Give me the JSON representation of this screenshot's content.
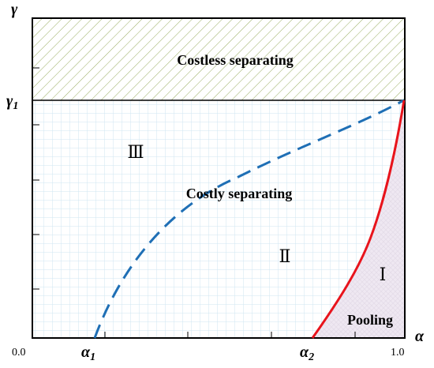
{
  "axes": {
    "y_axis_label": "γ",
    "x_axis_label": "α",
    "y_tick_label": "γ",
    "y_tick_subscript": "1",
    "x_origin_label": "0.0",
    "x_end_label": "1.0",
    "alpha1_label": "α",
    "alpha1_subscript": "1",
    "alpha2_label": "α",
    "alpha2_subscript": "2"
  },
  "regions": {
    "costless": "Costless separating",
    "costly": "Costly separating",
    "pooling": "Pooling",
    "region_III": "Ⅲ",
    "region_II": "Ⅱ",
    "region_I": "Ⅰ"
  },
  "colors": {
    "dashed_curve": "#1f6fb5",
    "solid_curve": "#e8141c",
    "costless_hatch": "#9aae62",
    "grid": "#cfe6f2",
    "pooling_fill": "#d8cfe0"
  }
}
